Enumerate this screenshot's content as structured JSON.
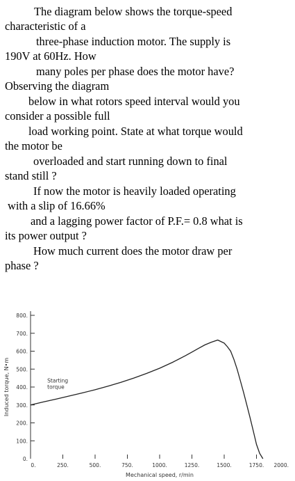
{
  "question_lines": [
    "The diagram below shows the torque-speed",
    "characteristic of a",
    "three-phase induction motor. The supply is",
    "190V at 60Hz.  How",
    "many poles per phase does the motor have?",
    "Observing the diagram",
    "below in what rotors speed interval would you",
    "consider a possible full",
    "load working point. State at what torque would",
    "the motor be",
    "overloaded and start running down to final",
    "stand still ?",
    "If now the motor is heavily loaded operating",
    "with a slip of  16.66%",
    "and a lagging power factor of P.F.= 0.8 what is",
    "its power output ?",
    "How much current does the motor draw per",
    "phase ?"
  ],
  "chart_data": {
    "type": "line",
    "xlabel": "Mechanical speed, r/min",
    "ylabel": "Induced torque, N•m",
    "xlim": [
      0,
      2000
    ],
    "ylim": [
      0,
      800
    ],
    "x_ticks": [
      "0.",
      "250.",
      "500.",
      "750.",
      "1000.",
      "1250.",
      "1500.",
      "1750.",
      "2000."
    ],
    "y_ticks": [
      "0.",
      "100.",
      "200.",
      "300.",
      "400.",
      "500.",
      "600.",
      "700.",
      "800."
    ],
    "annotation": "Starting\ntorque",
    "annotation_lines": [
      "Starting",
      "torque"
    ],
    "series": [
      {
        "x": [
          0,
          100,
          200,
          300,
          400,
          500,
          600,
          700,
          800,
          900,
          1000,
          1100,
          1200,
          1250,
          1300,
          1350,
          1400,
          1450,
          1500,
          1525,
          1550,
          1575,
          1600,
          1625,
          1650,
          1675,
          1700,
          1725,
          1750,
          1775,
          1800
        ],
        "y": [
          300,
          317,
          333,
          350,
          367,
          385,
          405,
          426,
          450,
          476,
          505,
          538,
          575,
          595,
          615,
          635,
          650,
          662,
          645,
          625,
          600,
          555,
          500,
          435,
          370,
          300,
          230,
          155,
          80,
          30,
          0
        ]
      }
    ]
  }
}
